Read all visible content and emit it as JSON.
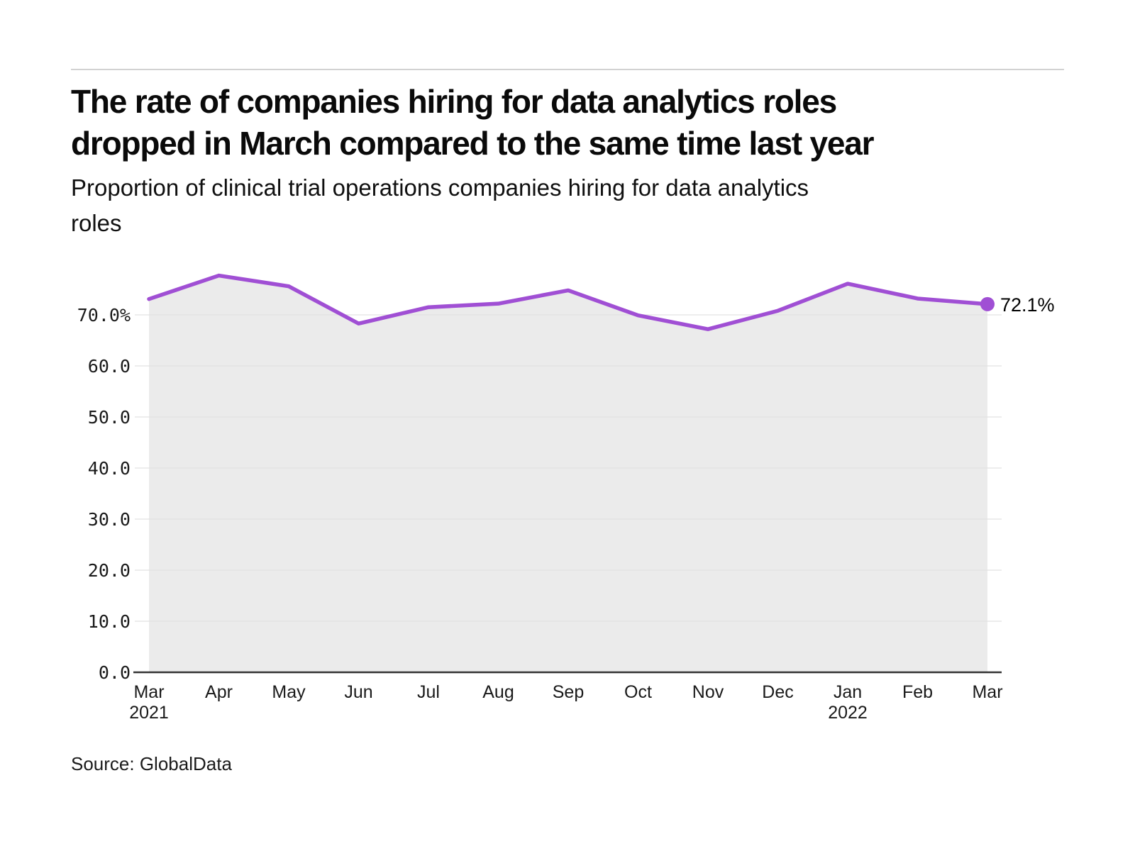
{
  "page": {
    "title_line1": "The rate of companies hiring for data analytics roles",
    "title_line2": "dropped in March compared to the same time last year",
    "subtitle_line1": "Proportion of clinical trial operations companies hiring for data analytics",
    "subtitle_line2": "roles",
    "source": "Source: GlobalData"
  },
  "chart_data": {
    "type": "area",
    "title": "Proportion of clinical trial operations companies hiring for data analytics roles",
    "categories": [
      "Mar",
      "Apr",
      "May",
      "Jun",
      "Jul",
      "Aug",
      "Sep",
      "Oct",
      "Nov",
      "Dec",
      "Jan",
      "Feb",
      "Mar"
    ],
    "year_labels": [
      {
        "index": 0,
        "label": "2021"
      },
      {
        "index": 10,
        "label": "2022"
      }
    ],
    "values": [
      73.1,
      77.7,
      75.6,
      68.3,
      71.5,
      72.2,
      74.8,
      69.9,
      67.2,
      70.8,
      76.1,
      73.2,
      72.1
    ],
    "end_label": "72.1%",
    "xlabel": "",
    "ylabel": "",
    "ylim": [
      0,
      80
    ],
    "yticks": [
      0,
      10,
      20,
      30,
      40,
      50,
      60,
      70
    ],
    "ytick_labels": [
      "0.0",
      "10.0",
      "20.0",
      "30.0",
      "40.0",
      "50.0",
      "60.0",
      "70.0%"
    ],
    "grid": true,
    "legend_position": "none",
    "colors": {
      "line": "#a04fd4",
      "marker": "#a04fd4",
      "area_fill": "#ebebeb",
      "gridline": "#e2e2e2",
      "axis_line": "#333333",
      "tick_text": "#1a1a1a"
    }
  }
}
